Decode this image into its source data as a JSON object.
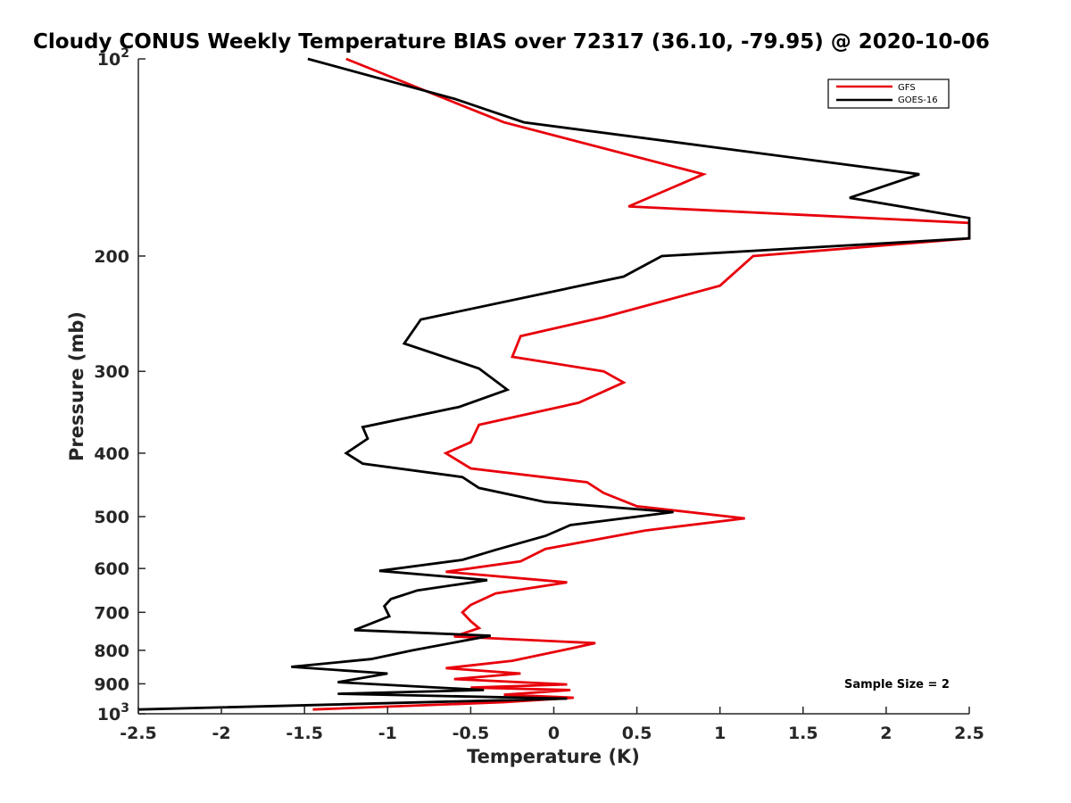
{
  "chart_data": {
    "type": "line",
    "title": "Cloudy CONUS Weekly Temperature BIAS over 72317 (36.10, -79.95) @ 2020-10-06",
    "xlabel": "Temperature (K)",
    "ylabel": "Pressure (mb)",
    "xlim": [
      -2.5,
      2.5
    ],
    "ylim": [
      100,
      1000
    ],
    "yscale": "log",
    "y_reversed": true,
    "grid": false,
    "legend_position": "top-right",
    "x_ticks": [
      "-2.5",
      "-2",
      "-1.5",
      "-1",
      "-0.5",
      "0",
      "0.5",
      "1",
      "1.5",
      "2",
      "2.5"
    ],
    "y_ticks": [
      {
        "value": 100,
        "base": "10",
        "exp": "2"
      },
      {
        "value": 200,
        "label": "200"
      },
      {
        "value": 300,
        "label": "300"
      },
      {
        "value": 400,
        "label": "400"
      },
      {
        "value": 500,
        "label": "500"
      },
      {
        "value": 600,
        "label": "600"
      },
      {
        "value": 700,
        "label": "700"
      },
      {
        "value": 800,
        "label": "800"
      },
      {
        "value": 900,
        "label": "900"
      },
      {
        "value": 1000,
        "base": "10",
        "exp": "3"
      }
    ],
    "annotation": "Sample Size = 2",
    "series": [
      {
        "name": "GFS",
        "color": "#e8000b",
        "points": [
          [
            -1.25,
            100
          ],
          [
            -0.3,
            125
          ],
          [
            0.9,
            150
          ],
          [
            0.45,
            168
          ],
          [
            2.5,
            178
          ],
          [
            2.5,
            188
          ],
          [
            1.2,
            200
          ],
          [
            1.0,
            222
          ],
          [
            0.3,
            248
          ],
          [
            -0.2,
            265
          ],
          [
            -0.25,
            285
          ],
          [
            0.3,
            300
          ],
          [
            0.42,
            312
          ],
          [
            0.15,
            335
          ],
          [
            -0.45,
            362
          ],
          [
            -0.5,
            385
          ],
          [
            -0.65,
            400
          ],
          [
            -0.5,
            422
          ],
          [
            0.2,
            443
          ],
          [
            0.3,
            460
          ],
          [
            0.5,
            482
          ],
          [
            1.15,
            503
          ],
          [
            0.55,
            525
          ],
          [
            -0.05,
            560
          ],
          [
            -0.2,
            585
          ],
          [
            -0.65,
            607
          ],
          [
            0.08,
            630
          ],
          [
            -0.35,
            655
          ],
          [
            -0.5,
            682
          ],
          [
            -0.55,
            700
          ],
          [
            -0.5,
            722
          ],
          [
            -0.45,
            740
          ],
          [
            -0.6,
            762
          ],
          [
            0.25,
            780
          ],
          [
            0.05,
            800
          ],
          [
            -0.25,
            830
          ],
          [
            -0.65,
            852
          ],
          [
            -0.2,
            868
          ],
          [
            -0.6,
            885
          ],
          [
            0.08,
            902
          ],
          [
            -0.5,
            912
          ],
          [
            0.1,
            920
          ],
          [
            -0.3,
            935
          ],
          [
            0.12,
            945
          ],
          [
            -0.3,
            960
          ],
          [
            -1.45,
            985
          ]
        ]
      },
      {
        "name": "GOES-16",
        "color": "#000000",
        "points": [
          [
            -1.48,
            100
          ],
          [
            -0.6,
            115
          ],
          [
            -0.18,
            125
          ],
          [
            2.2,
            150
          ],
          [
            1.78,
            163
          ],
          [
            2.5,
            175
          ],
          [
            2.5,
            188
          ],
          [
            0.65,
            200
          ],
          [
            0.42,
            215
          ],
          [
            -0.8,
            250
          ],
          [
            -0.9,
            272
          ],
          [
            -0.45,
            297
          ],
          [
            -0.28,
            320
          ],
          [
            -0.57,
            340
          ],
          [
            -1.15,
            365
          ],
          [
            -1.12,
            380
          ],
          [
            -1.25,
            400
          ],
          [
            -1.15,
            415
          ],
          [
            -0.55,
            435
          ],
          [
            -0.45,
            452
          ],
          [
            -0.05,
            475
          ],
          [
            0.72,
            492
          ],
          [
            0.1,
            515
          ],
          [
            -0.05,
            535
          ],
          [
            -0.35,
            562
          ],
          [
            -0.55,
            582
          ],
          [
            -1.05,
            605
          ],
          [
            -0.4,
            625
          ],
          [
            -0.82,
            648
          ],
          [
            -0.98,
            668
          ],
          [
            -1.02,
            685
          ],
          [
            -0.99,
            710
          ],
          [
            -1.2,
            745
          ],
          [
            -0.38,
            760
          ],
          [
            -0.85,
            800
          ],
          [
            -1.1,
            825
          ],
          [
            -1.58,
            848
          ],
          [
            -1.0,
            868
          ],
          [
            -1.3,
            895
          ],
          [
            -0.42,
            920
          ],
          [
            -1.3,
            932
          ],
          [
            0.08,
            948
          ],
          [
            -2.5,
            985
          ]
        ]
      }
    ]
  }
}
